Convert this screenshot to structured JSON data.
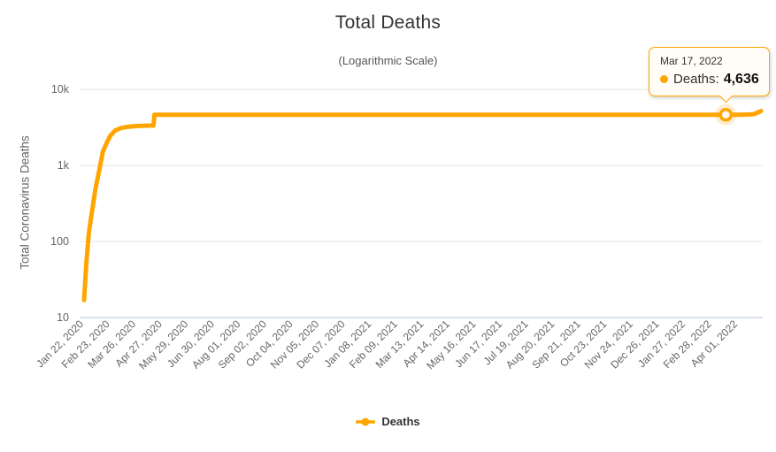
{
  "chart": {
    "title": "Total Deaths",
    "subtitle": "(Logarithmic Scale)",
    "y_axis_title": "Total Coronavirus Deaths"
  },
  "tooltip": {
    "date": "Mar 17, 2022",
    "series_label": "Deaths:",
    "value": "4,636"
  },
  "legend": {
    "label": "Deaths"
  },
  "chart_data": {
    "type": "line",
    "title": "Total Deaths",
    "subtitle": "(Logarithmic Scale)",
    "xlabel": "",
    "ylabel": "Total Coronavirus Deaths",
    "yscale": "log",
    "ylim": [
      10,
      10000
    ],
    "yticks": [
      {
        "label": "10k",
        "value": 10000
      },
      {
        "label": "1k",
        "value": 1000
      },
      {
        "label": "100",
        "value": 100
      },
      {
        "label": "10",
        "value": 10
      }
    ],
    "grid": "horizontal",
    "legend_position": "bottom",
    "colors": {
      "series": "#FFA500",
      "grid": "#e6e6e6",
      "axis_line": "#ccd6eb",
      "label_text": "#666666",
      "title_text": "#333333"
    },
    "categories": [
      "Jan 22, 2020",
      "Feb 23, 2020",
      "Mar 26, 2020",
      "Apr 27, 2020",
      "May 29, 2020",
      "Jun 30, 2020",
      "Aug 01, 2020",
      "Sep 02, 2020",
      "Oct 04, 2020",
      "Nov 05, 2020",
      "Dec 07, 2020",
      "Jan 08, 2021",
      "Feb 09, 2021",
      "Mar 13, 2021",
      "Apr 14, 2021",
      "May 16, 2021",
      "Jun 17, 2021",
      "Jul 19, 2021",
      "Aug 20, 2021",
      "Sep 21, 2021",
      "Oct 23, 2021",
      "Nov 24, 2021",
      "Dec 26, 2021",
      "Jan 27, 2022",
      "Feb 28, 2022",
      "Apr 01, 2022"
    ],
    "category_step_days": 32,
    "series": [
      {
        "name": "Deaths",
        "color": "#FFA500",
        "points": [
          {
            "date": "Jan 22, 2020",
            "day": 0,
            "value": 17
          },
          {
            "date": "Jan 25, 2020",
            "day": 3,
            "value": 56
          },
          {
            "date": "Jan 28, 2020",
            "day": 6,
            "value": 132
          },
          {
            "date": "Feb 01, 2020",
            "day": 10,
            "value": 259
          },
          {
            "date": "Feb 05, 2020",
            "day": 14,
            "value": 493
          },
          {
            "date": "Feb 10, 2020",
            "day": 19,
            "value": 910
          },
          {
            "date": "Feb 14, 2020",
            "day": 23,
            "value": 1524
          },
          {
            "date": "Feb 19, 2020",
            "day": 28,
            "value": 2012
          },
          {
            "date": "Feb 23, 2020",
            "day": 32,
            "value": 2446
          },
          {
            "date": "Feb 29, 2020",
            "day": 38,
            "value": 2872
          },
          {
            "date": "Mar 07, 2020",
            "day": 45,
            "value": 3099
          },
          {
            "date": "Mar 15, 2020",
            "day": 53,
            "value": 3213
          },
          {
            "date": "Mar 26, 2020",
            "day": 64,
            "value": 3296
          },
          {
            "date": "Apr 09, 2020",
            "day": 78,
            "value": 3339
          },
          {
            "date": "Apr 16, 2020",
            "day": 85,
            "value": 3346
          },
          {
            "date": "Apr 17, 2020",
            "day": 86,
            "value": 4636
          },
          {
            "date": "May 21, 2020",
            "day": 120,
            "value": 4638
          },
          {
            "date": "Aug 09, 2020",
            "day": 200,
            "value": 4638
          },
          {
            "date": "Nov 17, 2020",
            "day": 300,
            "value": 4636
          },
          {
            "date": "Feb 25, 2021",
            "day": 400,
            "value": 4636
          },
          {
            "date": "Jun 05, 2021",
            "day": 500,
            "value": 4636
          },
          {
            "date": "Sep 13, 2021",
            "day": 600,
            "value": 4636
          },
          {
            "date": "Dec 22, 2021",
            "day": 700,
            "value": 4636
          },
          {
            "date": "Mar 17, 2022",
            "day": 785,
            "value": 4636
          },
          {
            "date": "Mar 27, 2022",
            "day": 795,
            "value": 4640
          },
          {
            "date": "Apr 06, 2022",
            "day": 805,
            "value": 4648
          },
          {
            "date": "Apr 16, 2022",
            "day": 815,
            "value": 4680
          },
          {
            "date": "Apr 21, 2022",
            "day": 820,
            "value": 4738
          },
          {
            "date": "Apr 25, 2022",
            "day": 824,
            "value": 4964
          },
          {
            "date": "Apr 29, 2022",
            "day": 828,
            "value": 5192
          }
        ]
      }
    ],
    "highlighted_point": {
      "date": "Mar 17, 2022",
      "day": 785,
      "value": 4636
    }
  }
}
